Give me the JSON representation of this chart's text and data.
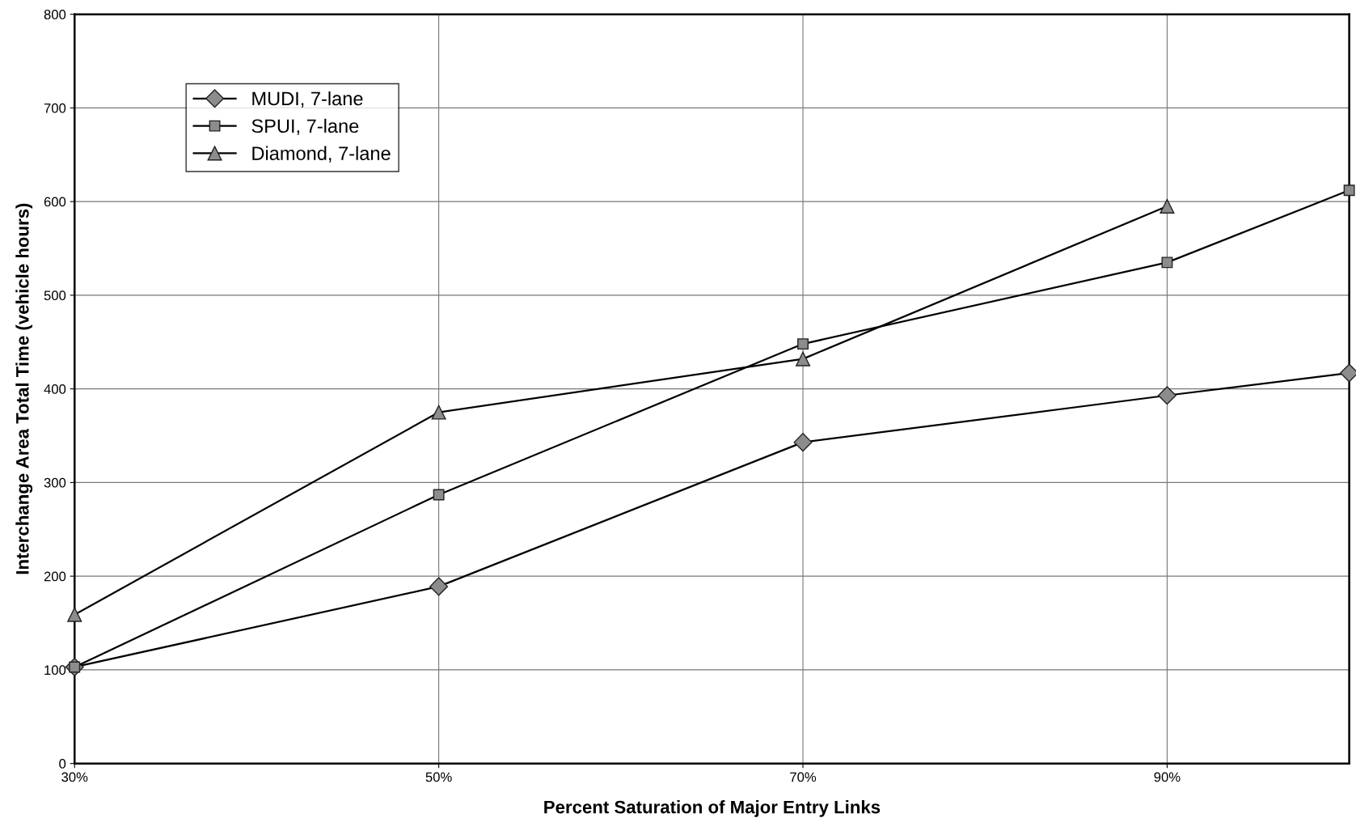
{
  "chart_data": {
    "type": "line",
    "xlabel": "Percent Saturation of Major Entry Links",
    "ylabel": "Interchange Area Total Time (vehicle hours)",
    "x": [
      30,
      50,
      70,
      90,
      100
    ],
    "series": [
      {
        "name": "MUDI, 7-lane",
        "color": "#000000",
        "marker": "diamond",
        "values": [
          103,
          189,
          343,
          393,
          417
        ]
      },
      {
        "name": "SPUI, 7-lane",
        "color": "#000000",
        "marker": "square",
        "values": [
          103,
          287,
          448,
          535,
          612
        ]
      },
      {
        "name": "Diamond, 7-lane",
        "color": "#000000",
        "marker": "triangle",
        "values": [
          159,
          375,
          432,
          595,
          null
        ]
      }
    ],
    "xlim": [
      30,
      100
    ],
    "xticks": [
      {
        "value": 30,
        "label": "30%"
      },
      {
        "value": 50,
        "label": "50%"
      },
      {
        "value": 70,
        "label": "70%"
      },
      {
        "value": 90,
        "label": "90%"
      }
    ],
    "ylim": [
      0,
      800
    ],
    "yticks": [
      0,
      100,
      200,
      300,
      400,
      500,
      600,
      700,
      800
    ],
    "grid": true,
    "legend": "top left",
    "line_style": "solid"
  }
}
